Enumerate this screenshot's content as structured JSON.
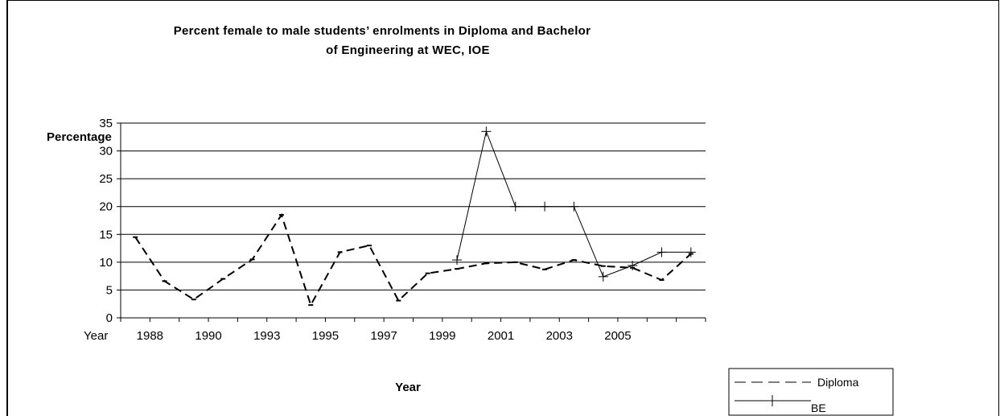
{
  "chart_data": {
    "type": "line",
    "title_line1": "Percent female to male students’ enrolments in Diploma and Bachelor",
    "title_line2": "of Engineering at WEC, IOE",
    "ylabel": "Percentage",
    "xlabel": "Year",
    "x_axis_start_label": "Year",
    "ylim": [
      0,
      35
    ],
    "y_ticks": [
      0,
      5,
      10,
      15,
      20,
      25,
      30,
      35
    ],
    "x_tick_labels": [
      "1988",
      "1990",
      "1993",
      "1995",
      "1997",
      "1999",
      "2001",
      "2003",
      "2005"
    ],
    "x_tick_label_slots": [
      1,
      3,
      5,
      7,
      9,
      11,
      13,
      15,
      17
    ],
    "slot_count": 20,
    "grid": true,
    "legend_position": "bottom-right",
    "series": [
      {
        "name": "Diploma",
        "style": "dashed",
        "color": "#000000",
        "points": [
          {
            "slot": 0.5,
            "y": 14.5
          },
          {
            "slot": 1.5,
            "y": 6.6
          },
          {
            "slot": 2.5,
            "y": 3.3
          },
          {
            "slot": 3.5,
            "y": 7.0
          },
          {
            "slot": 4.5,
            "y": 10.5
          },
          {
            "slot": 5.5,
            "y": 18.5
          },
          {
            "slot": 6.5,
            "y": 2.3
          },
          {
            "slot": 7.5,
            "y": 11.8
          },
          {
            "slot": 8.5,
            "y": 13.0
          },
          {
            "slot": 9.5,
            "y": 3.1
          },
          {
            "slot": 10.5,
            "y": 8.0
          },
          {
            "slot": 11.5,
            "y": 8.8
          },
          {
            "slot": 12.5,
            "y": 9.8
          },
          {
            "slot": 13.5,
            "y": 10.0
          },
          {
            "slot": 14.5,
            "y": 8.7
          },
          {
            "slot": 15.5,
            "y": 10.4
          },
          {
            "slot": 16.5,
            "y": 9.3
          },
          {
            "slot": 17.5,
            "y": 9.0
          },
          {
            "slot": 18.5,
            "y": 6.8
          },
          {
            "slot": 19.5,
            "y": 11.5
          }
        ]
      },
      {
        "name": "BE",
        "style": "solid-marker",
        "color": "#000000",
        "points": [
          {
            "slot": 11.5,
            "y": 10.4
          },
          {
            "slot": 12.5,
            "y": 33.5
          },
          {
            "slot": 13.5,
            "y": 20.0
          },
          {
            "slot": 14.5,
            "y": 20.0
          },
          {
            "slot": 15.5,
            "y": 20.0
          },
          {
            "slot": 16.5,
            "y": 7.4
          },
          {
            "slot": 17.5,
            "y": 9.4
          },
          {
            "slot": 18.5,
            "y": 11.8
          },
          {
            "slot": 19.5,
            "y": 11.8
          }
        ]
      }
    ]
  }
}
